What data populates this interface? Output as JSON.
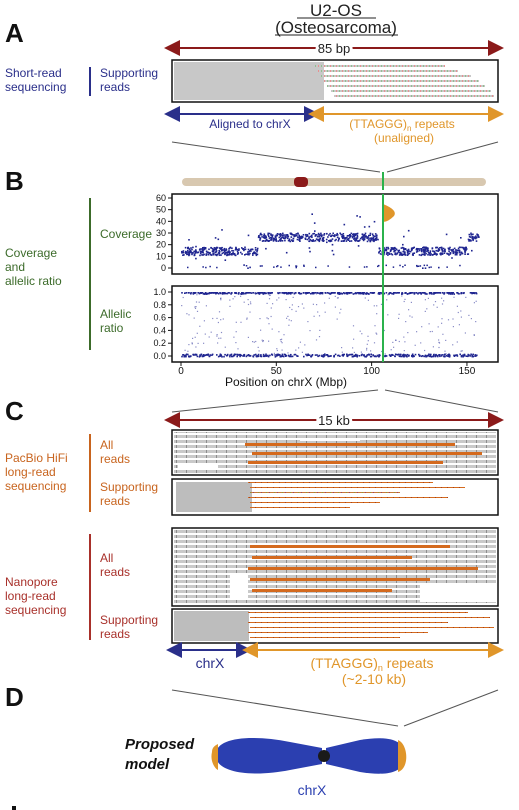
{
  "header": {
    "line1": "U2-OS",
    "line2": "(Osteosarcoma)"
  },
  "panels": {
    "A": {
      "letter": "A",
      "span_label": "85 bp",
      "side_label_line1": "Short-read",
      "side_label_line2": "sequencing",
      "track_label_line1": "Supporting",
      "track_label_line2": "reads",
      "left_arrow_label": "Aligned to chrX",
      "right_arrow_label_line1": "(TTAGGG)",
      "right_arrow_label_sub": "n",
      "right_arrow_label_rest": " repeats",
      "right_arrow_label_line2": "(unaligned)"
    },
    "B": {
      "letter": "B",
      "side_label_line1": "Coverage",
      "side_label_line2": "and",
      "side_label_line3": "allelic ratio",
      "coverage_label": "Coverage",
      "allelic_label_line1": "Allelic",
      "allelic_label_line2": "ratio",
      "coverage_ticks": [
        "60",
        "50",
        "40",
        "30",
        "20",
        "10",
        "0"
      ],
      "allelic_ticks": [
        "1.0",
        "0.8",
        "0.6",
        "0.4",
        "0.2",
        "0.0"
      ],
      "x_ticks": [
        "0",
        "50",
        "100",
        "150"
      ],
      "xlabel": "Position on chrX (Mbp)"
    },
    "C": {
      "letter": "C",
      "span_label": "15 kb",
      "pacbio_line1": "PacBio HiFi",
      "pacbio_line2": "long-read",
      "pacbio_line3": "sequencing",
      "all_reads_line1": "All",
      "all_reads_line2": "reads",
      "supporting_line1": "Supporting",
      "supporting_line2": "reads",
      "nanopore_line1": "Nanopore",
      "nanopore_line2": "long-read",
      "nanopore_line3": "sequencing",
      "np_all_line1": "All",
      "np_all_line2": "reads",
      "np_supporting_line1": "Supporting",
      "np_supporting_line2": "reads",
      "left_arrow_label": "chrX",
      "right_arrow_label_line1": "(TTAGGG)",
      "right_arrow_label_sub": "n",
      "right_arrow_label_rest": " repeats",
      "right_arrow_label_line2": "(~2-10 kb)"
    },
    "D": {
      "letter": "D",
      "model_line1": "Proposed",
      "model_line2": "model",
      "chr_label": "chrX"
    }
  },
  "colors": {
    "dark_red": "#8b1a1a",
    "navy": "#2a2f8a",
    "orange": "#e0962a",
    "green": "#3c6b2a",
    "pacbio_orange": "#c8641e",
    "nanopore_red": "#a8302a",
    "chr_blue": "#2b3fb0",
    "guide_green": "#2bb24c"
  },
  "chart_data": [
    {
      "type": "scatter",
      "panel": "B-coverage",
      "ylabel": "Coverage",
      "ylim": [
        0,
        60
      ],
      "xlim": [
        0,
        160
      ],
      "segments": [
        {
          "x_start": 0,
          "x_end": 40,
          "y_mean": 15
        },
        {
          "x_start": 40,
          "x_end": 103,
          "y_mean": 27
        },
        {
          "x_start": 103,
          "x_end": 150,
          "y_mean": 15
        },
        {
          "x_start": 150,
          "x_end": 156,
          "y_mean": 27
        }
      ]
    },
    {
      "type": "scatter",
      "panel": "B-allelic",
      "ylabel": "Allelic ratio",
      "ylim": [
        0,
        1
      ],
      "xlim": [
        0,
        160
      ],
      "bands": [
        0.02,
        1.0
      ]
    }
  ]
}
